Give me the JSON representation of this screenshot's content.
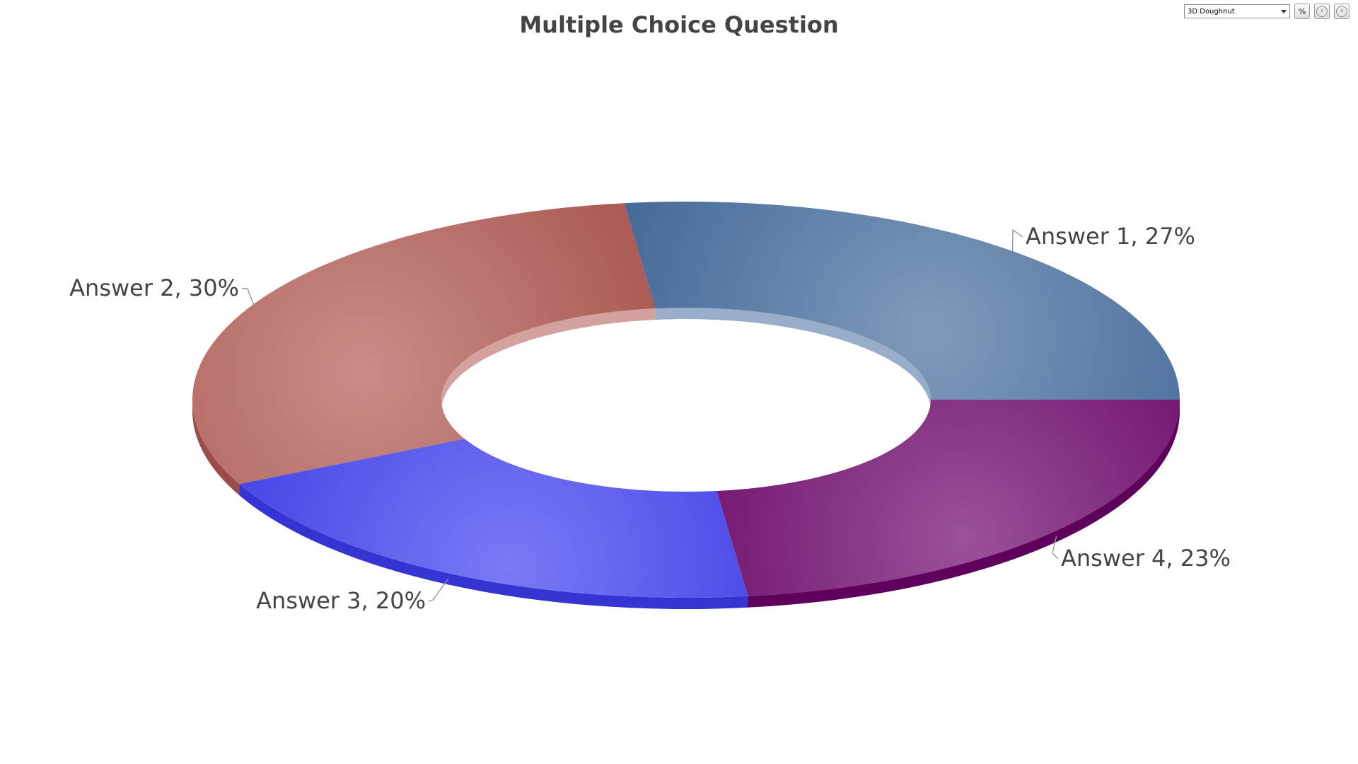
{
  "toolbar": {
    "chart_type": "3D Doughnut",
    "percent_button": "%",
    "prev_icon": "arrow-left-icon",
    "next_icon": "arrow-right-icon"
  },
  "chart_data": {
    "type": "pie",
    "variant": "3D doughnut",
    "title": "Multiple Choice Question",
    "legend": "none",
    "slices": [
      {
        "name": "Answer 1",
        "value": 27,
        "label": "Answer 1, 27%",
        "color": "#436a9c"
      },
      {
        "name": "Answer 4",
        "value": 23,
        "label": "Answer 4, 23%",
        "color": "#6b0068"
      },
      {
        "name": "Answer 3",
        "value": 20,
        "label": "Answer 3, 20%",
        "color": "#3b3bf0"
      },
      {
        "name": "Answer 2",
        "value": 30,
        "label": "Answer 2, 30%",
        "color": "#b0564f"
      }
    ]
  }
}
